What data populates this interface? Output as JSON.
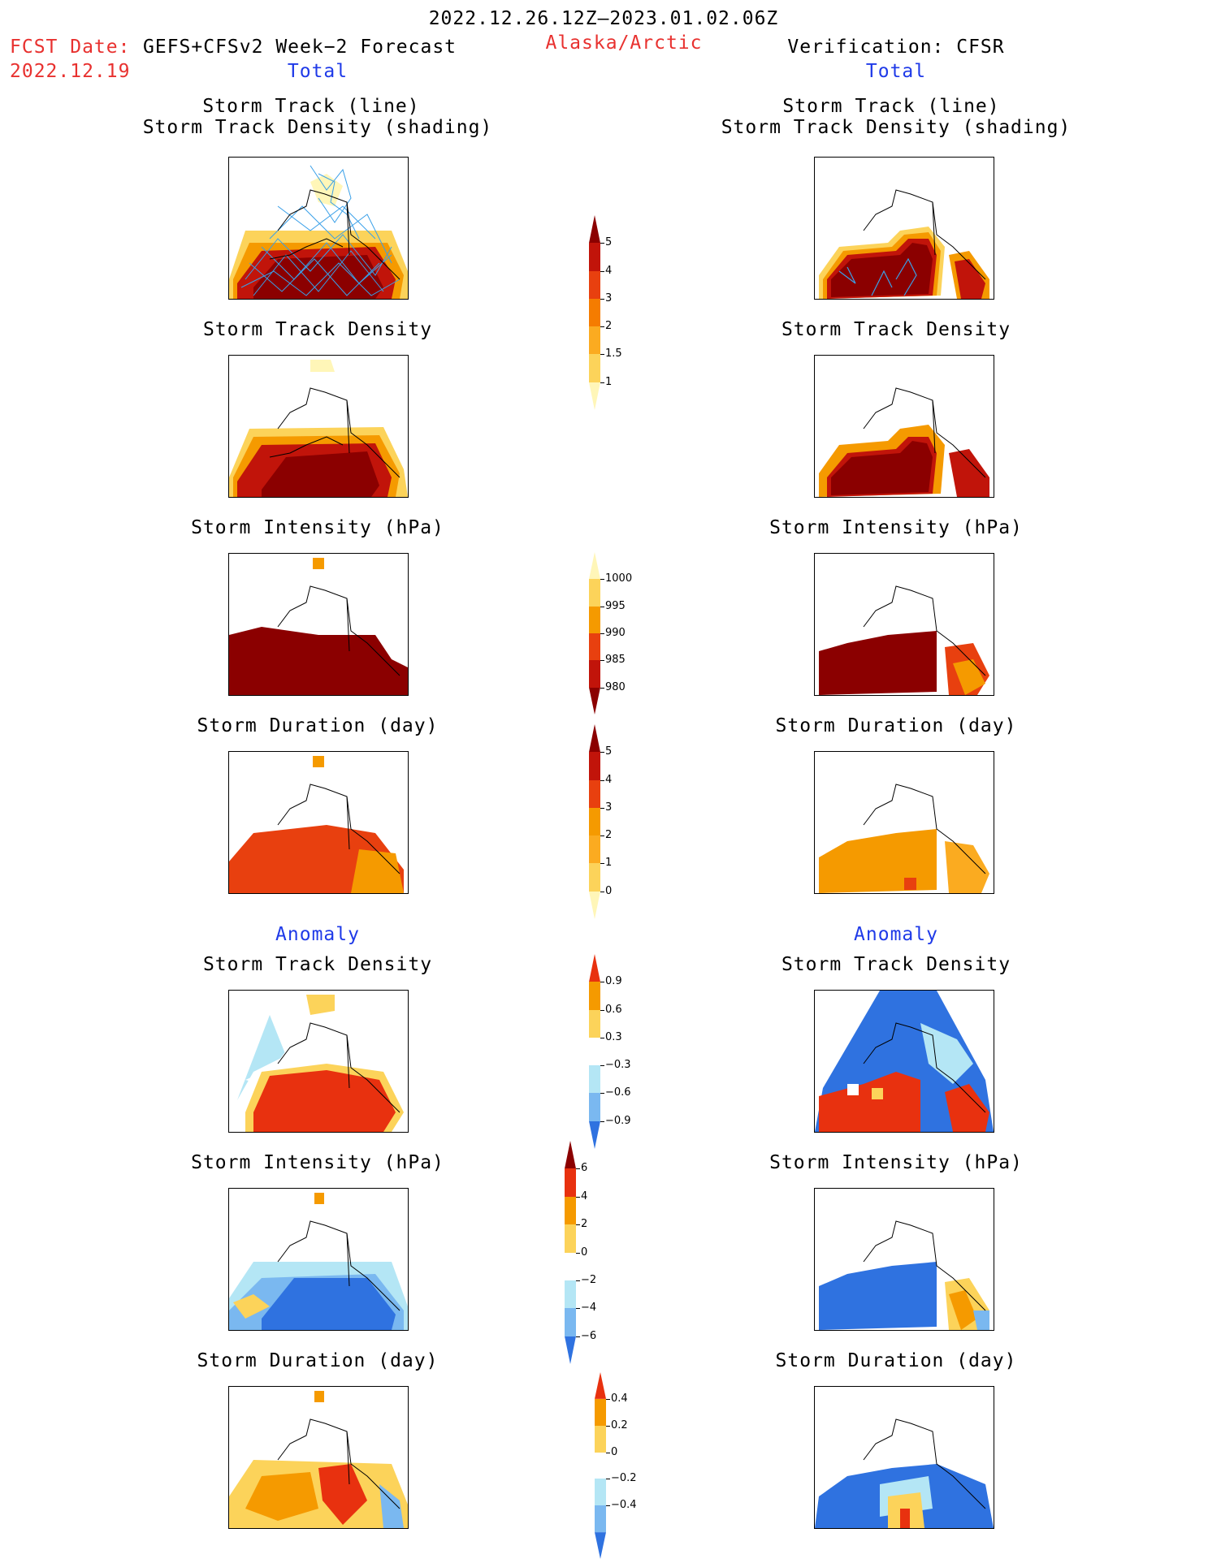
{
  "header": {
    "period": "2022.12.26.12Z–2023.01.02.06Z",
    "fcst_label": "FCST Date:",
    "fcst_model": "GEFS+CFSv2 Week−2 Forecast",
    "fcst_date": "2022.12.19",
    "region": "Alaska/Arctic",
    "verification": "Verification: CFSR",
    "total_left": "Total",
    "total_right": "Total",
    "anomaly_left": "Anomaly",
    "anomaly_right": "Anomaly"
  },
  "panels": {
    "track_line": "Storm Track (line)",
    "track_shading": "Storm Track Density (shading)",
    "density": "Storm Track Density",
    "intensity": "Storm Intensity (hPa)",
    "duration": "Storm Duration (day)"
  },
  "colorbars": {
    "density_total": {
      "ticks": [
        "5",
        "4",
        "3",
        "2",
        "1.5",
        "1"
      ],
      "colors": [
        "#8b0000",
        "#c1140a",
        "#e8400f",
        "#f57c00",
        "#fbab20",
        "#fcd35a",
        "#fff6b8"
      ]
    },
    "intensity_total": {
      "ticks": [
        "1000",
        "995",
        "990",
        "985",
        "980"
      ],
      "colors": [
        "#fff6b8",
        "#fcd35a",
        "#f59a00",
        "#e8400f",
        "#c1140a",
        "#8b0000"
      ]
    },
    "duration_total": {
      "ticks": [
        "5",
        "4",
        "3",
        "2",
        "1",
        "0"
      ],
      "colors": [
        "#8b0000",
        "#c1140a",
        "#e8400f",
        "#f59a00",
        "#fbab20",
        "#fcd35a",
        "#fff6b8"
      ]
    },
    "density_anom": {
      "ticks": [
        "0.9",
        "0.6",
        "0.3",
        "−0.3",
        "−0.6",
        "−0.9"
      ],
      "colors": [
        "#e8310f",
        "#f59a00",
        "#fcd35a",
        "#ffffff",
        "#b4e6f5",
        "#7ab8f0",
        "#2f72e0"
      ]
    },
    "intensity_anom": {
      "ticks": [
        "6",
        "4",
        "2",
        "0",
        "−2",
        "−4",
        "−6"
      ],
      "colors": [
        "#8b0000",
        "#e8310f",
        "#f59a00",
        "#fcd35a",
        "#ffffff",
        "#b4e6f5",
        "#7ab8f0",
        "#2f72e0"
      ]
    },
    "duration_anom": {
      "ticks": [
        "0.4",
        "0.2",
        "0",
        "−0.2",
        "−0.4"
      ],
      "colors": [
        "#e8310f",
        "#f59a00",
        "#fcd35a",
        "#ffffff",
        "#b4e6f5",
        "#7ab8f0",
        "#2f72e0"
      ]
    }
  }
}
